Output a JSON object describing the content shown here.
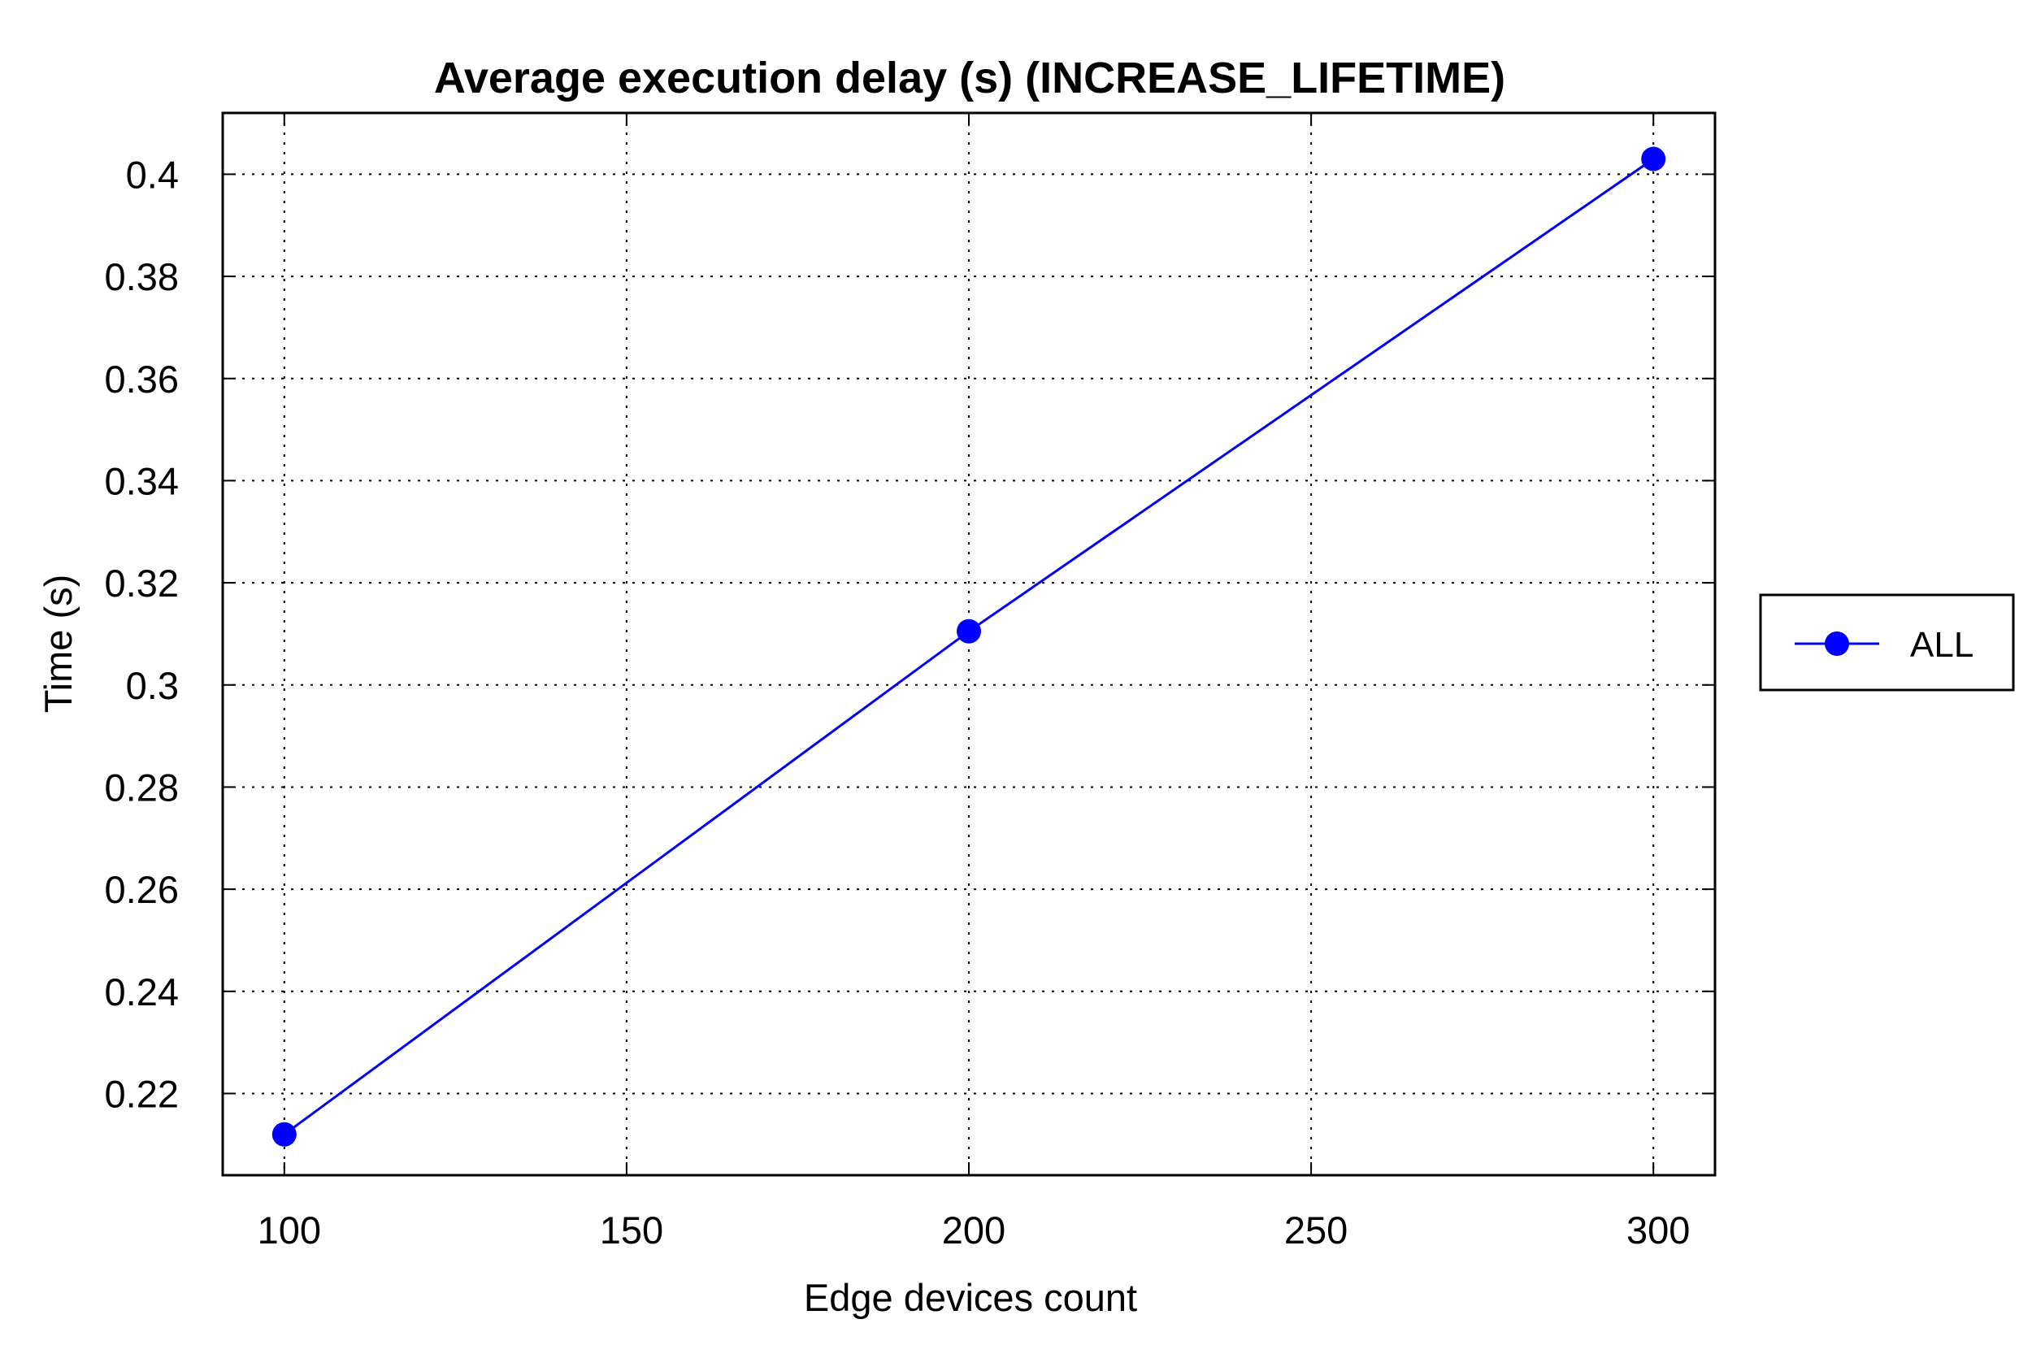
{
  "chart_data": {
    "type": "line",
    "title": "Average execution delay (s) (INCREASE_LIFETIME)",
    "xlabel": "Edge devices count",
    "ylabel": "Time (s)",
    "xlim": [
      91,
      309
    ],
    "ylim": [
      0.204,
      0.412
    ],
    "x_ticks": [
      100,
      150,
      200,
      250,
      300
    ],
    "x_tick_labels": [
      "100",
      "150",
      "200",
      "250",
      "300"
    ],
    "y_ticks": [
      0.22,
      0.24,
      0.26,
      0.28,
      0.3,
      0.32,
      0.34,
      0.36,
      0.38,
      0.4
    ],
    "y_tick_labels": [
      "0.22",
      "0.24",
      "0.26",
      "0.28",
      "0.3",
      "0.32",
      "0.34",
      "0.36",
      "0.38",
      "0.4"
    ],
    "grid": true,
    "legend_position": "right",
    "series": [
      {
        "name": "ALL",
        "color": "#0000ff",
        "marker": "circle",
        "x": [
          100,
          200,
          300
        ],
        "y": [
          0.212,
          0.3105,
          0.403
        ]
      }
    ]
  }
}
